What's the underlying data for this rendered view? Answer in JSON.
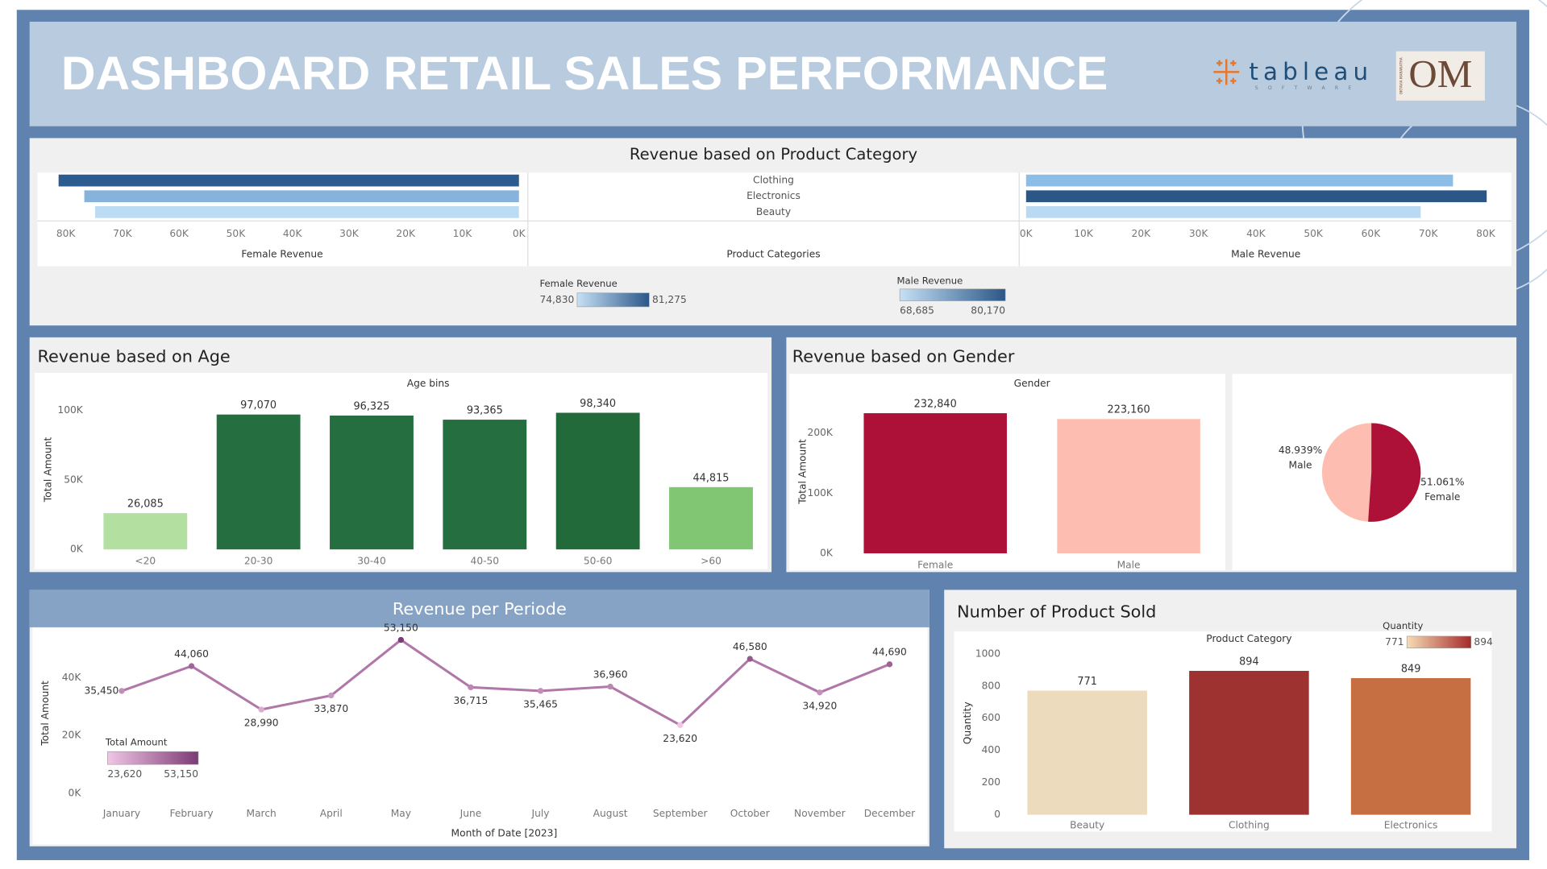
{
  "dashboard": {
    "title": "DASHBOARD RETAIL SALES PERFORMANCE",
    "logos": {
      "tableau": "tableau",
      "tableau_sub": "SOFTWARE",
      "om": "OM",
      "om_sub": "OKTAVIA MARANATHA"
    }
  },
  "chart_data": [
    {
      "type": "butterfly",
      "title": "Revenue based on Product Category",
      "categories": [
        "Clothing",
        "Electronics",
        "Beauty"
      ],
      "category_axis_label": "Product Categories",
      "series": [
        {
          "name": "Female Revenue",
          "values": [
            81275,
            76735,
            74830
          ],
          "colors": [
            "#2c5b8f",
            "#86b3db",
            "#bcdcf3"
          ],
          "xlim": [
            0,
            85000
          ],
          "xticks": [
            {
              "value": 0,
              "label": "0K"
            },
            {
              "value": 10000,
              "label": "10K"
            },
            {
              "value": 20000,
              "label": "20K"
            },
            {
              "value": 30000,
              "label": "30K"
            },
            {
              "value": 40000,
              "label": "40K"
            },
            {
              "value": 50000,
              "label": "50K"
            },
            {
              "value": 60000,
              "label": "60K"
            },
            {
              "value": 70000,
              "label": "70K"
            },
            {
              "value": 80000,
              "label": "80K"
            }
          ],
          "color_legend": {
            "min": {
              "value": 74830,
              "label": "74,830"
            },
            "max": {
              "value": 81275,
              "label": "81,275"
            },
            "colors": [
              "#c6e0f5",
              "#2a5788"
            ]
          }
        },
        {
          "name": "Male Revenue",
          "values": [
            74305,
            80170,
            68685
          ],
          "colors": [
            "#8cbde6",
            "#2a5788",
            "#b9daf2"
          ],
          "xlim": [
            0,
            85000
          ],
          "xticks": [
            {
              "value": 0,
              "label": "0K"
            },
            {
              "value": 10000,
              "label": "10K"
            },
            {
              "value": 20000,
              "label": "20K"
            },
            {
              "value": 30000,
              "label": "30K"
            },
            {
              "value": 40000,
              "label": "40K"
            },
            {
              "value": 50000,
              "label": "50K"
            },
            {
              "value": 60000,
              "label": "60K"
            },
            {
              "value": 70000,
              "label": "70K"
            },
            {
              "value": 80000,
              "label": "80K"
            }
          ],
          "color_legend": {
            "min": {
              "value": 68685,
              "label": "68,685"
            },
            "max": {
              "value": 80170,
              "label": "80,170"
            },
            "colors": [
              "#c6e0f5",
              "#2a5788"
            ]
          }
        }
      ]
    },
    {
      "type": "bar",
      "title": "Revenue based on Age",
      "x_label": "Age bins",
      "y_label": "Total Amount",
      "categories": [
        "<20",
        "20-30",
        "30-40",
        "40-50",
        "50-60",
        ">60"
      ],
      "values": [
        26085,
        97070,
        96325,
        93365,
        98340,
        44815
      ],
      "value_labels": [
        "26,085",
        "97,070",
        "96,325",
        "93,365",
        "98,340",
        "44,815"
      ],
      "colors": [
        "#b3dfa0",
        "#256e3f",
        "#256e3f",
        "#256e3f",
        "#236a3b",
        "#80c673"
      ],
      "ylim": [
        0,
        115000
      ],
      "yticks": [
        {
          "value": 0,
          "label": "0K"
        },
        {
          "value": 50000,
          "label": "50K"
        },
        {
          "value": 100000,
          "label": "100K"
        }
      ]
    },
    {
      "type": "bar",
      "title": "Revenue based on Gender",
      "x_label": "Gender",
      "y_label": "Total Amount",
      "categories": [
        "Female",
        "Male"
      ],
      "values": [
        232840,
        223160
      ],
      "value_labels": [
        "232,840",
        "223,160"
      ],
      "colors": [
        "#ad1137",
        "#fdbdb0"
      ],
      "ylim": [
        0,
        272000
      ],
      "yticks": [
        {
          "value": 0,
          "label": "0K"
        },
        {
          "value": 100000,
          "label": "100K"
        },
        {
          "value": 200000,
          "label": "200K"
        }
      ]
    },
    {
      "type": "pie",
      "categories": [
        "Male",
        "Female"
      ],
      "values": [
        48.939,
        51.061
      ],
      "value_labels": [
        "48.939%",
        "51.061%"
      ],
      "colors": [
        "#fdbdb0",
        "#ad1137"
      ]
    },
    {
      "type": "line",
      "title": "Revenue per Periode",
      "x_label": "Month of Date [2023]",
      "y_label": "Total Amount",
      "categories": [
        "January",
        "February",
        "March",
        "April",
        "May",
        "June",
        "July",
        "August",
        "September",
        "October",
        "November",
        "December"
      ],
      "values": [
        35450,
        44060,
        28990,
        33870,
        53150,
        36715,
        35465,
        36960,
        23620,
        46580,
        34920,
        44690
      ],
      "value_labels": [
        "35,450",
        "44,060",
        "28,990",
        "33,870",
        "53,150",
        "36,715",
        "35,465",
        "36,960",
        "23,620",
        "46,580",
        "34,920",
        "44,690"
      ],
      "ylim": [
        -2000,
        57500
      ],
      "yticks": [
        {
          "value": 0,
          "label": "0K"
        },
        {
          "value": 20000,
          "label": "20K"
        },
        {
          "value": 40000,
          "label": "40K"
        }
      ],
      "color_legend": {
        "title": "Total Amount",
        "min": {
          "value": 23620,
          "label": "23,620"
        },
        "max": {
          "value": 53150,
          "label": "53,150"
        },
        "colors": [
          "#f0c6e6",
          "#7b3b73"
        ]
      }
    },
    {
      "type": "bar",
      "title": "Number of Product Sold",
      "x_label": "Product Category",
      "y_label": "Quantity",
      "categories": [
        "Beauty",
        "Clothing",
        "Electronics"
      ],
      "values": [
        771,
        894,
        849
      ],
      "colors": [
        "#eddbbd",
        "#9e3230",
        "#c56f42"
      ],
      "ylim": [
        0,
        1140
      ],
      "yticks": [
        0,
        200,
        400,
        600,
        800,
        1000
      ],
      "color_legend": {
        "title": "Quantity",
        "min": 771,
        "max": 894,
        "colors": [
          "#f6dcb4",
          "#a52a2a"
        ]
      }
    }
  ]
}
